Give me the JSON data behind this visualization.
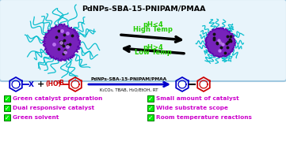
{
  "title": "PdNPs-SBA-15-PNIPAM/PMAA",
  "reaction_catalyst": "PdNPs-SBA-15-PNIPAM/PMAA",
  "reaction_conditions": "K₂CO₃, TBAB, H₂O/EtOH, RT",
  "ph_high": "pH<4",
  "temp_high": "High Temp",
  "ph_low": "pH>4",
  "temp_low": "Low Temp",
  "checkmarks_left": [
    "Green catalyst preparation",
    "Dual responsive catalyst",
    "Green solvent"
  ],
  "checkmarks_right": [
    "Small amount of catalyst",
    "Wide substrate scope",
    "Room temperature reactions"
  ],
  "box_color": "#a0c8e0",
  "title_color": "#000000",
  "text_color": "#cc00cc",
  "blue_color": "#0000cc",
  "red_color": "#cc0000",
  "green_label_color": "#22cc00",
  "background": "#ffffff",
  "nanoparticle_purple": "#7722bb",
  "nanoparticle_cyan": "#00bbcc",
  "box_facecolor": "#e8f4fb"
}
